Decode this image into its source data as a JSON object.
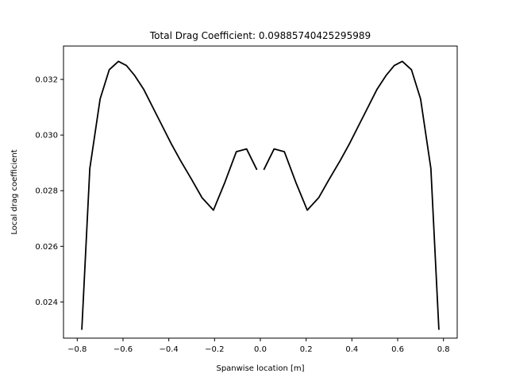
{
  "chart_data": {
    "type": "line",
    "title": "Total Drag Coefficient: 0.09885740425295989",
    "xlabel": "Spanwise location [m]",
    "ylabel": "Local drag coefficient",
    "xlim": [
      -0.86,
      0.86
    ],
    "ylim": [
      0.0227,
      0.0332
    ],
    "xticks": [
      -0.8,
      -0.6,
      -0.4,
      -0.2,
      0.0,
      0.2,
      0.4,
      0.6,
      0.8
    ],
    "xtick_labels": [
      "−0.8",
      "−0.6",
      "−0.4",
      "−0.2",
      "0.0",
      "0.2",
      "0.4",
      "0.6",
      "0.8"
    ],
    "yticks": [
      0.024,
      0.026,
      0.028,
      0.03,
      0.032
    ],
    "ytick_labels": [
      "0.024",
      "0.026",
      "0.028",
      "0.030",
      "0.032"
    ],
    "grid": false,
    "line_color": "#000000",
    "series": [
      {
        "x": [
          -0.78,
          -0.745,
          -0.7,
          -0.66,
          -0.62,
          -0.585,
          -0.55,
          -0.51,
          -0.47,
          -0.43,
          -0.39,
          -0.35,
          -0.3,
          -0.255,
          -0.205,
          -0.155,
          -0.105,
          -0.06,
          -0.015
        ],
        "y": [
          0.023,
          0.0288,
          0.0313,
          0.03235,
          0.03265,
          0.0325,
          0.03215,
          0.03165,
          0.031,
          0.03035,
          0.0297,
          0.0291,
          0.0284,
          0.02775,
          0.0273,
          0.0283,
          0.0294,
          0.0295,
          0.02875
        ]
      },
      {
        "x": [
          0.015,
          0.06,
          0.105,
          0.155,
          0.205,
          0.255,
          0.3,
          0.35,
          0.39,
          0.43,
          0.47,
          0.51,
          0.55,
          0.585,
          0.62,
          0.66,
          0.7,
          0.745,
          0.78
        ],
        "y": [
          0.02875,
          0.0295,
          0.0294,
          0.0283,
          0.0273,
          0.02775,
          0.0284,
          0.0291,
          0.0297,
          0.03035,
          0.031,
          0.03165,
          0.03215,
          0.0325,
          0.03265,
          0.03235,
          0.0313,
          0.0288,
          0.023
        ]
      }
    ]
  }
}
